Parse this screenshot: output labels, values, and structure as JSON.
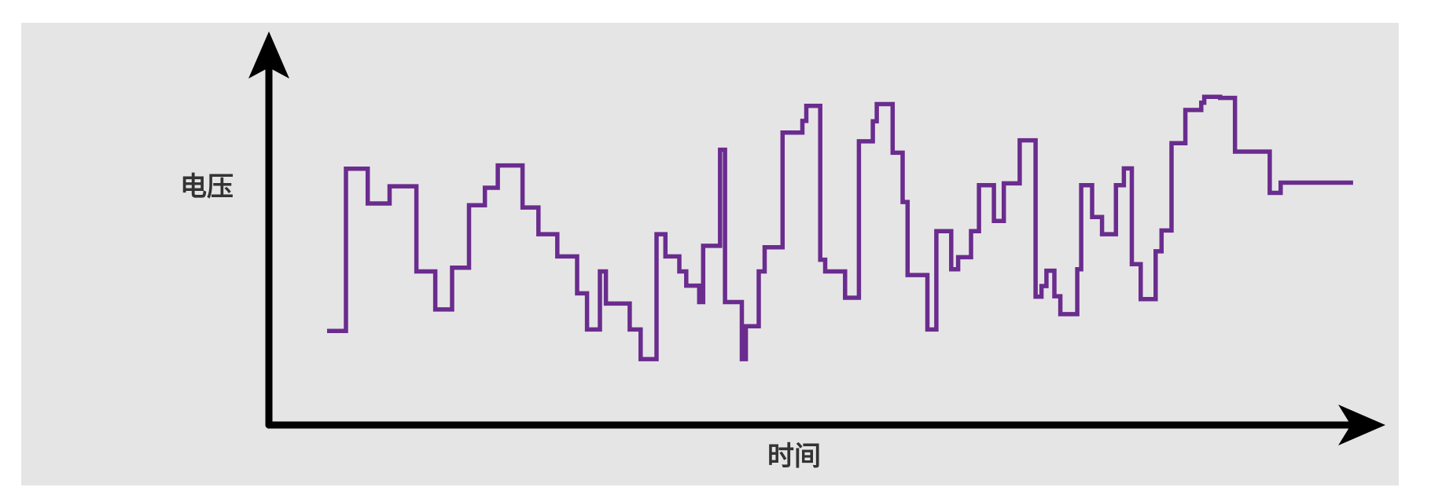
{
  "chart_data": {
    "type": "line",
    "step": true,
    "xlabel": "时间",
    "ylabel": "电压",
    "title": "",
    "xlim": [
      0,
      100
    ],
    "ylim": [
      0,
      100
    ],
    "grid": false,
    "series": [
      {
        "x": [
          0,
          1.9,
          4.1,
          6.3,
          9.0,
          10.9,
          12.6,
          14.3,
          15.9,
          17.2,
          19.7,
          21.3,
          23.2,
          25.2,
          26.2,
          27.5,
          28.1,
          30.5,
          31.6,
          33.2,
          34.1,
          35.5,
          36.2,
          37.5,
          37.9,
          39.6,
          40.1,
          41.8,
          42.2,
          43.5,
          44.1,
          45.9,
          47.9,
          48.3,
          49.7,
          50.2,
          52.2,
          53.6,
          55.0,
          55.4,
          57.0,
          58.0,
          58.5,
          60.5,
          61.4,
          62.9,
          63.6,
          64.9,
          65.7,
          67.2,
          68.2,
          69.8,
          71.4,
          72.0,
          72.5,
          73.3,
          73.9,
          75.6,
          76.0,
          77.1,
          78.1,
          78.7,
          79.5,
          80.3,
          81.1,
          82.0,
          83.5,
          84.1,
          85.1,
          86.5,
          88.1,
          88.4,
          90.0,
          91.5,
          95.0,
          96.1,
          97.3,
          99.0,
          99.5,
          100.9,
          101.5,
          103.4
        ],
        "y": [
          25.1,
          69.5,
          60.0,
          64.7,
          41.4,
          31.0,
          42.4,
          59.5,
          64.3,
          70.4,
          58.9,
          51.6,
          45.5,
          35.4,
          25.5,
          41.4,
          32.6,
          25.5,
          17.4,
          51.6,
          45.5,
          41.4,
          37.5,
          33.0,
          48.4,
          74.7,
          33.0,
          17.4,
          26.4,
          41.4,
          48.0,
          79.4,
          82.6,
          86.7,
          44.6,
          41.4,
          34.2,
          77.0,
          82.5,
          87.2,
          73.9,
          60.4,
          40.4,
          25.5,
          52.4,
          42.0,
          45.3,
          52.4,
          65.0,
          55.2,
          65.5,
          77.3,
          34.5,
          37.4,
          41.6,
          34.6,
          29.7,
          42.0,
          65.0,
          56.3,
          51.6,
          51.6,
          65.0,
          69.6,
          43.4,
          33.8,
          46.9,
          52.6,
          76.5,
          85.6,
          87.6,
          89.2,
          88.9,
          74.2,
          62.9,
          65.7,
          65.7,
          65.7,
          65.7,
          65.7,
          65.7,
          65.7
        ]
      }
    ]
  },
  "colors": {
    "background": "#e6e5e6",
    "line": "#6a2c8e",
    "axis": "#000000",
    "label": "#333333"
  }
}
